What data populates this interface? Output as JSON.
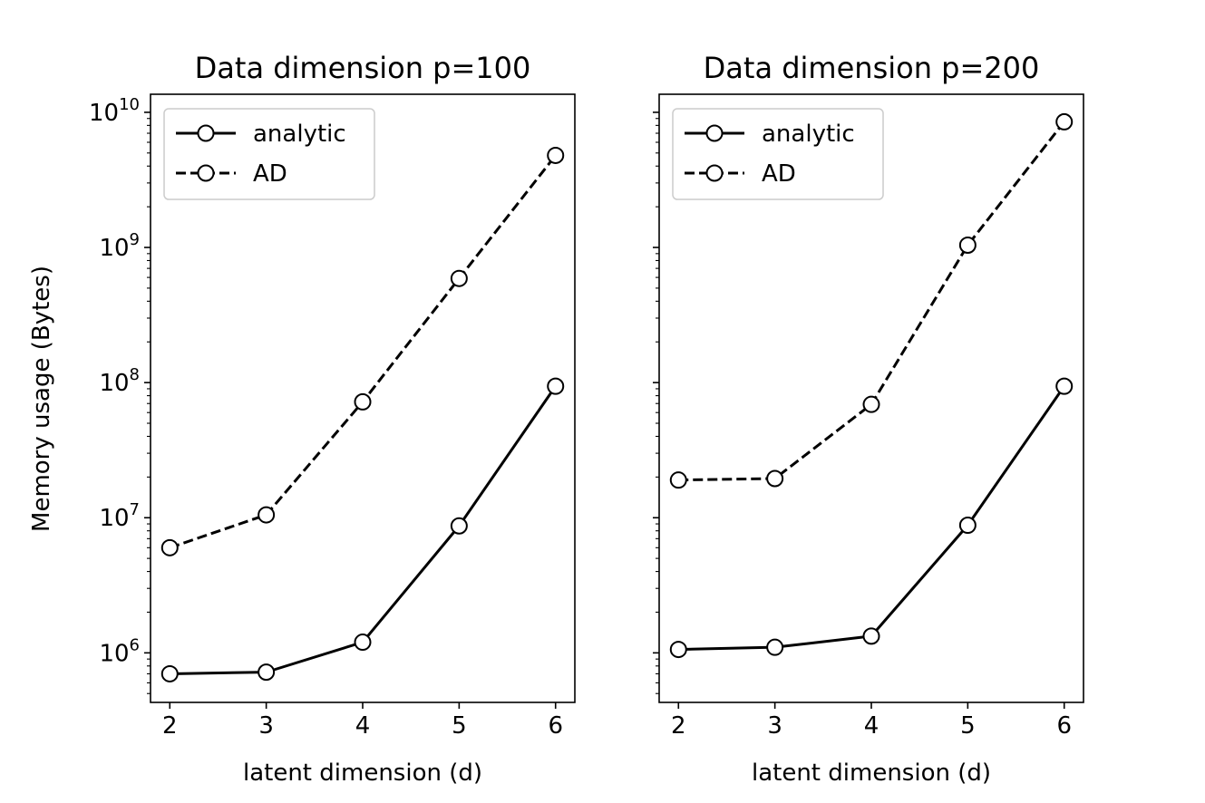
{
  "figure": {
    "ylabel": "Memory usage (Bytes)"
  },
  "chart_data": [
    {
      "type": "line",
      "title": "Data dimension p=100",
      "xlabel": "latent dimension (d)",
      "ylabel": "Memory usage (Bytes)",
      "yscale": "log",
      "x": [
        2,
        3,
        4,
        5,
        6
      ],
      "xticks": [
        "2",
        "3",
        "4",
        "5",
        "6"
      ],
      "yticks": [
        {
          "base": "10",
          "exp": "6",
          "value": 1000000
        },
        {
          "base": "10",
          "exp": "7",
          "value": 10000000
        },
        {
          "base": "10",
          "exp": "8",
          "value": 100000000
        },
        {
          "base": "10",
          "exp": "9",
          "value": 1000000000
        },
        {
          "base": "10",
          "exp": "10",
          "value": 10000000000
        }
      ],
      "xlim": [
        1.8,
        6.2
      ],
      "ylim": [
        430000,
        13600000000
      ],
      "legend_position": "upper-left",
      "series": [
        {
          "name": "analytic",
          "style": "solid",
          "values": [
            700000,
            720000,
            1200000,
            8700000,
            94000000
          ]
        },
        {
          "name": "AD",
          "style": "dashed",
          "values": [
            6000000,
            10500000,
            72000000,
            590000000,
            4800000000
          ]
        }
      ]
    },
    {
      "type": "line",
      "title": "Data dimension p=200",
      "xlabel": "latent dimension (d)",
      "ylabel": "",
      "yscale": "log",
      "x": [
        2,
        3,
        4,
        5,
        6
      ],
      "xticks": [
        "2",
        "3",
        "4",
        "5",
        "6"
      ],
      "yticks": [],
      "xlim": [
        1.8,
        6.2
      ],
      "ylim": [
        430000,
        13600000000
      ],
      "legend_position": "upper-left",
      "series": [
        {
          "name": "analytic",
          "style": "solid",
          "values": [
            1060000,
            1100000,
            1330000,
            8800000,
            94000000
          ]
        },
        {
          "name": "AD",
          "style": "dashed",
          "values": [
            19000000,
            19500000,
            69000000,
            1040000000,
            8500000000
          ]
        }
      ]
    }
  ]
}
